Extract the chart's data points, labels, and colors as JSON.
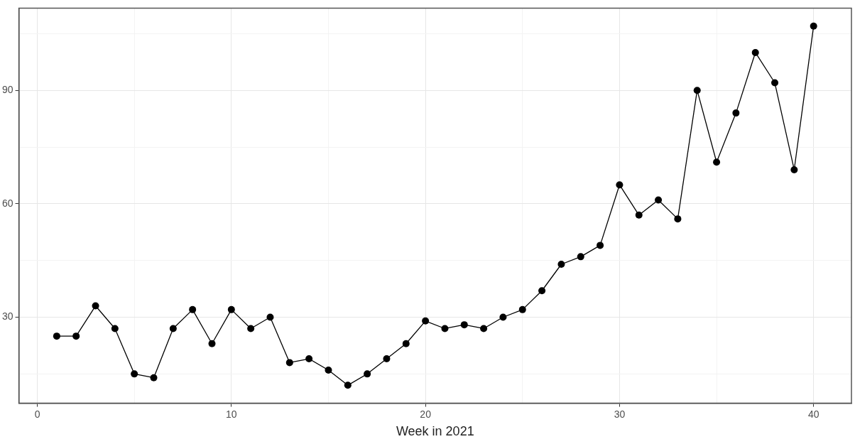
{
  "chart_data": {
    "type": "line",
    "xlabel": "Week in 2021",
    "x": [
      1,
      2,
      3,
      4,
      5,
      6,
      7,
      8,
      9,
      10,
      11,
      12,
      13,
      14,
      15,
      16,
      17,
      18,
      19,
      20,
      21,
      22,
      23,
      24,
      25,
      26,
      27,
      28,
      29,
      30,
      31,
      32,
      33,
      34,
      35,
      36,
      37,
      38,
      39,
      40
    ],
    "series": [
      {
        "color": "#000000",
        "values": [
          25,
          25,
          33,
          27,
          15,
          14,
          27,
          32,
          23,
          32,
          27,
          30,
          18,
          19,
          16,
          12,
          15,
          19,
          23,
          29,
          27,
          28,
          27,
          30,
          32,
          37,
          44,
          46,
          49,
          65,
          57,
          61,
          56,
          90,
          71,
          84,
          100,
          92,
          69,
          107
        ]
      }
    ],
    "xlim": [
      -0.95,
      41.95
    ],
    "xticks": [
      0,
      {
        "value": 5,
        "label": null
      },
      10,
      {
        "value": 15,
        "label": null
      },
      20,
      {
        "value": 25,
        "label": null
      },
      30,
      {
        "value": 35,
        "label": null
      },
      40
    ],
    "ylim": [
      7.25,
      111.75
    ],
    "yticks": [
      {
        "value": 15,
        "label": null
      },
      30,
      {
        "value": 45,
        "label": null
      },
      60,
      {
        "value": 75,
        "label": null
      },
      90,
      {
        "value": 105,
        "label": null
      }
    ],
    "grid": true,
    "legend": false,
    "marker": "circle",
    "line_style": "solid"
  }
}
